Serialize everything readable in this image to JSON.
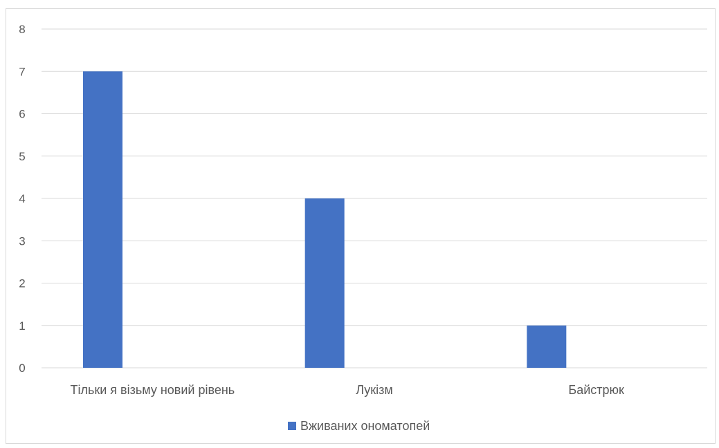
{
  "chart_data": {
    "type": "bar",
    "categories": [
      "Тільки я візьму новий рівень",
      "Лукізм",
      "Байстрюк"
    ],
    "series": [
      {
        "name": "Вживаних ономатопей",
        "values": [
          7,
          4,
          1
        ],
        "color": "#4472c4"
      }
    ],
    "title": "",
    "xlabel": "",
    "ylabel": "",
    "ylim": [
      0,
      8
    ],
    "yticks": [
      0,
      1,
      2,
      3,
      4,
      5,
      6,
      7,
      8
    ],
    "grid": true,
    "legend": "bottom"
  }
}
